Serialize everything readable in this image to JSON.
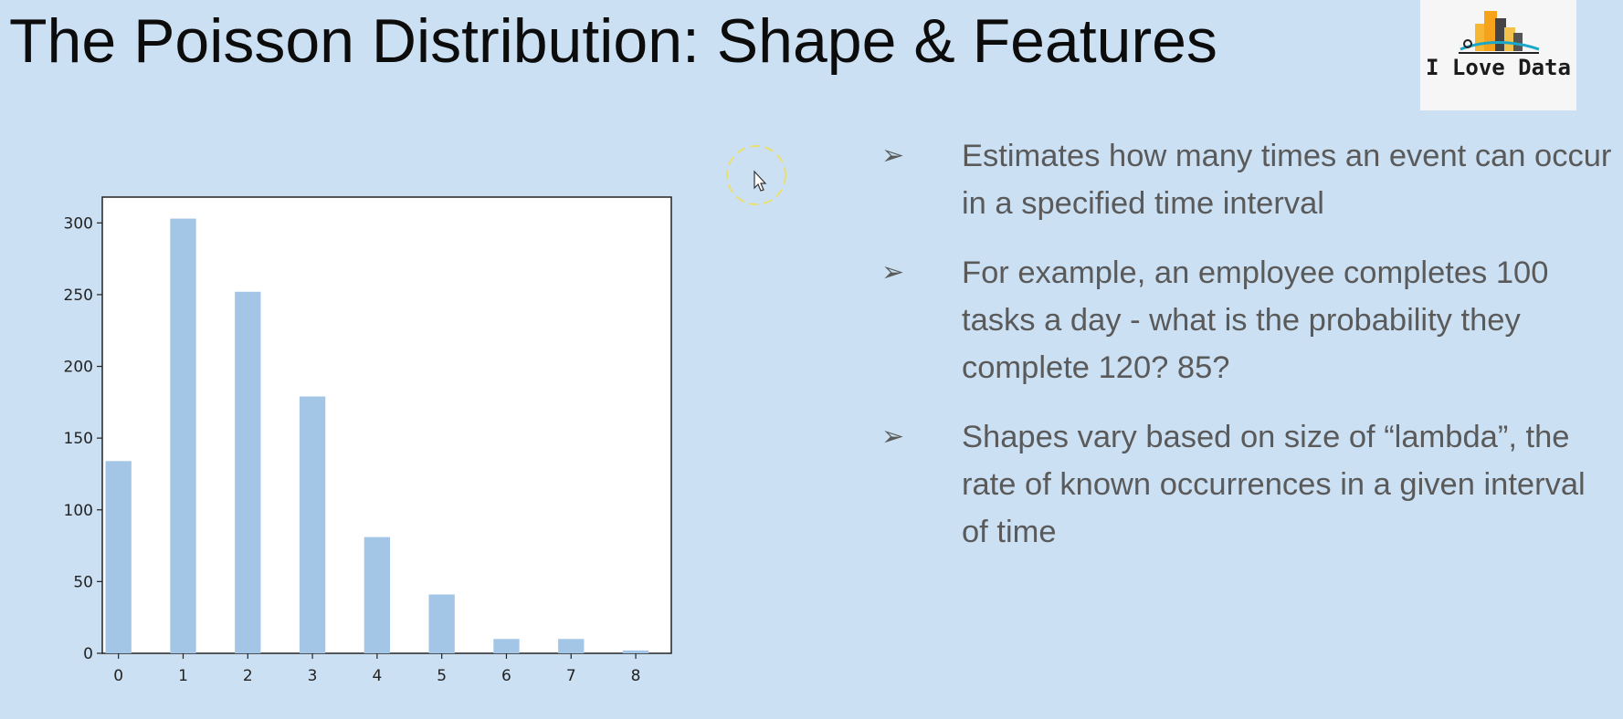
{
  "slide": {
    "title": "The Poisson Distribution: Shape & Features",
    "logo_text": "I Love Data",
    "bullets": [
      "Estimates how many times an event can occur in a specified time interval",
      "For example, an employee completes 100 tasks a day - what is the probability they complete 120? 85?",
      "Shapes vary based on size of “lambda”, the rate of known occurrences in a given interval of time"
    ],
    "bullet_marker": "➢"
  },
  "colors": {
    "background": "#cce0f3",
    "bar": "#a4c6e6",
    "plot_area": "#ffffff",
    "text": "#5a5a5a"
  },
  "icons": [
    "city-buildings-logo-icon",
    "mouse-cursor-icon",
    "bullet-arrow-icon"
  ],
  "chart_data": {
    "type": "bar",
    "title": "",
    "xlabel": "",
    "ylabel": "",
    "categories": [
      "0",
      "1",
      "2",
      "3",
      "4",
      "5",
      "6",
      "7",
      "8"
    ],
    "values": [
      134,
      303,
      252,
      179,
      81,
      41,
      10,
      10,
      2
    ],
    "ylim": [
      0,
      318
    ],
    "yticks": [
      0,
      50,
      100,
      150,
      200,
      250,
      300
    ],
    "grid": false,
    "legend": "none"
  }
}
